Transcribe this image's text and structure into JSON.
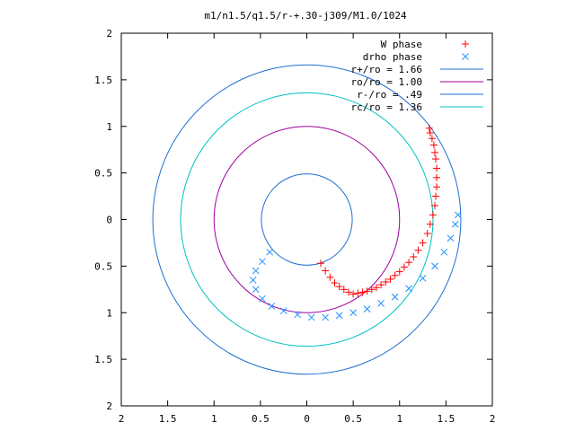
{
  "chart_data": {
    "type": "scatter",
    "title": "m1/n1.5/q1.5/r-+.30-j309/M1.0/1024",
    "xlabel": "",
    "ylabel": "",
    "xlim": [
      -2,
      2
    ],
    "ylim": [
      -2,
      2
    ],
    "x_tick_values": [
      -2,
      -1.5,
      -1,
      -0.5,
      0,
      0.5,
      1,
      1.5,
      2
    ],
    "x_tick_labels": [
      "2",
      "1.5",
      "1",
      "0.5",
      "0",
      "0.5",
      "1",
      "1.5",
      "2"
    ],
    "y_tick_values": [
      2,
      1.5,
      1,
      0.5,
      0,
      -0.5,
      -1,
      -1.5,
      -2
    ],
    "y_tick_labels": [
      "2",
      "1.5",
      "1",
      "0.5",
      "0",
      "0.5",
      "1",
      "1.5",
      "2"
    ],
    "grid": false,
    "legend_position": "top-right",
    "colors": {
      "w_phase": "#ff0000",
      "drho_phase": "#1e90ff",
      "r_plus": "#0060ad",
      "ro": "#a000a0",
      "r_minus": "#0060ad",
      "rc": "#00c0c0"
    },
    "circles": [
      {
        "name": "r+/ro = 1.66",
        "radius": 1.66,
        "color": "#1f6fd1"
      },
      {
        "name": "ro/ro = 1.00",
        "radius": 1.0,
        "color": "#a000a0"
      },
      {
        "name": "r-/ro = .49",
        "radius": 0.49,
        "color": "#1f6fd1"
      },
      {
        "name": "rc/ro = 1.36",
        "radius": 1.36,
        "color": "#00c0c0"
      }
    ],
    "series": [
      {
        "name": "W phase",
        "marker": "+",
        "color": "#ff0000",
        "points": [
          [
            0.15,
            -0.47
          ],
          [
            0.2,
            -0.55
          ],
          [
            0.25,
            -0.62
          ],
          [
            0.3,
            -0.68
          ],
          [
            0.35,
            -0.72
          ],
          [
            0.4,
            -0.75
          ],
          [
            0.45,
            -0.78
          ],
          [
            0.5,
            -0.8
          ],
          [
            0.55,
            -0.79
          ],
          [
            0.6,
            -0.78
          ],
          [
            0.65,
            -0.77
          ],
          [
            0.7,
            -0.75
          ],
          [
            0.75,
            -0.73
          ],
          [
            0.8,
            -0.7
          ],
          [
            0.85,
            -0.67
          ],
          [
            0.9,
            -0.64
          ],
          [
            0.95,
            -0.6
          ],
          [
            1.0,
            -0.56
          ],
          [
            1.05,
            -0.51
          ],
          [
            1.1,
            -0.46
          ],
          [
            1.15,
            -0.4
          ],
          [
            1.2,
            -0.33
          ],
          [
            1.25,
            -0.25
          ],
          [
            1.3,
            -0.15
          ],
          [
            1.33,
            -0.05
          ],
          [
            1.36,
            0.05
          ],
          [
            1.38,
            0.15
          ],
          [
            1.39,
            0.25
          ],
          [
            1.4,
            0.35
          ],
          [
            1.4,
            0.45
          ],
          [
            1.4,
            0.55
          ],
          [
            1.39,
            0.65
          ],
          [
            1.38,
            0.72
          ],
          [
            1.37,
            0.8
          ],
          [
            1.35,
            0.87
          ],
          [
            1.33,
            0.93
          ],
          [
            1.32,
            0.98
          ]
        ]
      },
      {
        "name": "drho phase",
        "marker": "x",
        "color": "#1e90ff",
        "points": [
          [
            -0.4,
            -0.35
          ],
          [
            -0.48,
            -0.45
          ],
          [
            -0.55,
            -0.55
          ],
          [
            -0.58,
            -0.65
          ],
          [
            -0.55,
            -0.75
          ],
          [
            -0.48,
            -0.85
          ],
          [
            -0.38,
            -0.93
          ],
          [
            -0.25,
            -0.98
          ],
          [
            -0.1,
            -1.02
          ],
          [
            0.05,
            -1.05
          ],
          [
            0.2,
            -1.05
          ],
          [
            0.35,
            -1.03
          ],
          [
            0.5,
            -1.0
          ],
          [
            0.65,
            -0.96
          ],
          [
            0.8,
            -0.9
          ],
          [
            0.95,
            -0.83
          ],
          [
            1.1,
            -0.74
          ],
          [
            1.25,
            -0.63
          ],
          [
            1.38,
            -0.5
          ],
          [
            1.48,
            -0.35
          ],
          [
            1.55,
            -0.2
          ],
          [
            1.6,
            -0.05
          ],
          [
            1.63,
            0.05
          ]
        ]
      }
    ]
  }
}
